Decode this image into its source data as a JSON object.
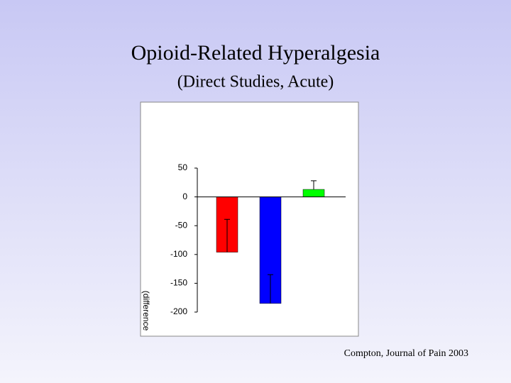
{
  "chart_data": {
    "type": "bar",
    "title": "Opioid-Related Hyperalgesia",
    "subtitle": "(Direct Studies, Acute)",
    "y_label": "(difference",
    "categories": [
      null,
      null,
      null
    ],
    "values": [
      -96,
      -185,
      13
    ],
    "errors": [
      57,
      50,
      15
    ],
    "colors": [
      "#ff0000",
      "#0000ff",
      "#00ff00"
    ],
    "ylim": [
      -200,
      50
    ],
    "yticks": [
      50,
      0,
      -50,
      -100,
      -150,
      -200
    ],
    "source": "Compton,  Journal of Pain 2003"
  }
}
